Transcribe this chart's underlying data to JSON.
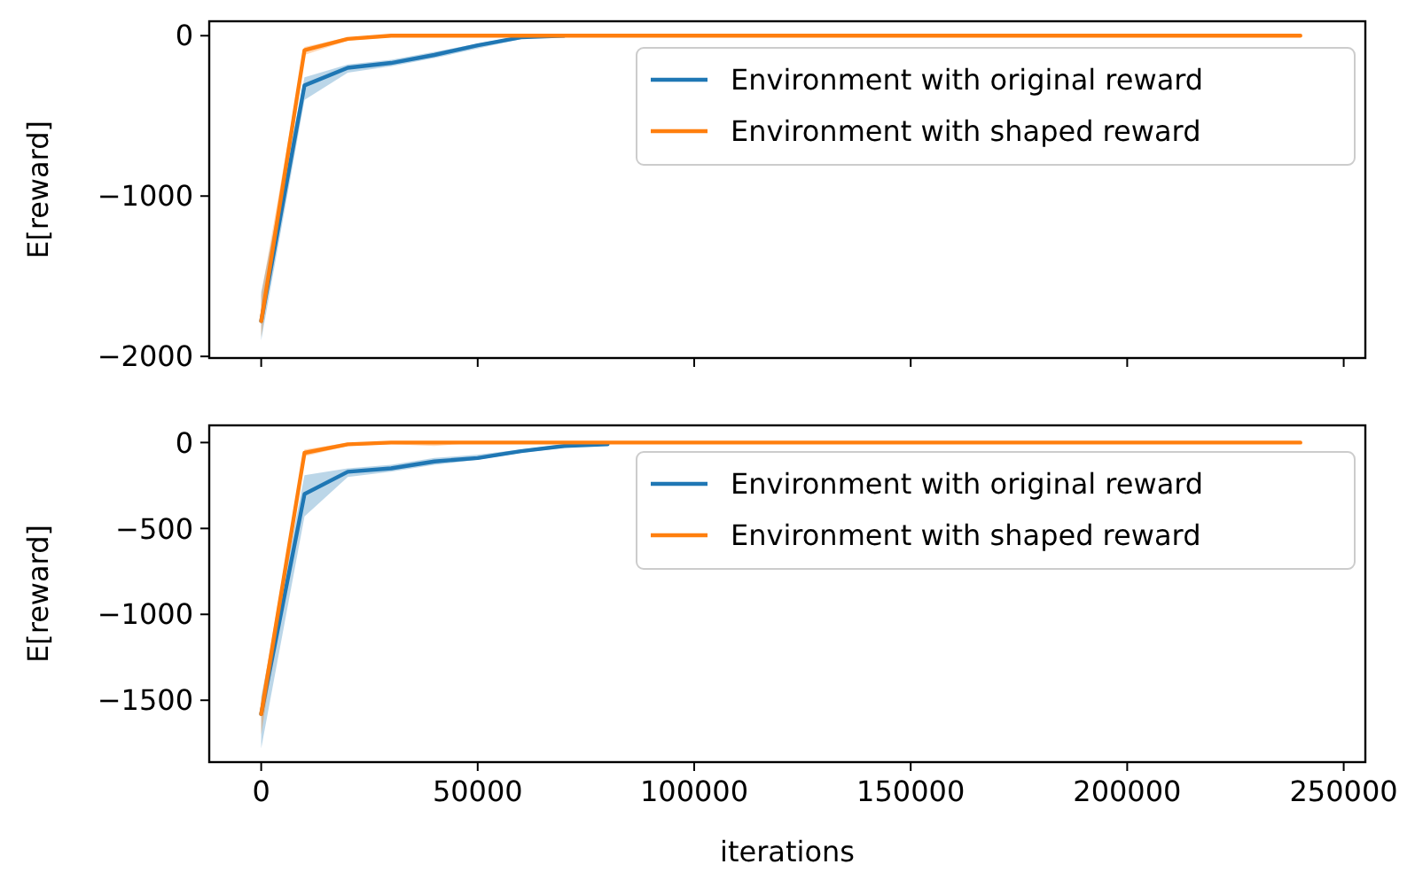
{
  "chart_data": [
    {
      "type": "line",
      "ylabel": "E[reward]",
      "x": [
        0,
        10000,
        20000,
        30000,
        40000,
        50000,
        60000,
        70000,
        80000,
        90000,
        100000,
        110000,
        120000,
        130000,
        140000,
        150000,
        160000,
        170000,
        180000,
        190000,
        200000,
        210000,
        220000,
        230000,
        240000
      ],
      "xlim": [
        -12000,
        255000
      ],
      "xticks": [
        {
          "value": 0,
          "label": null
        },
        {
          "value": 50000,
          "label": null
        },
        {
          "value": 100000,
          "label": null
        },
        {
          "value": 150000,
          "label": null
        },
        {
          "value": 200000,
          "label": null
        },
        {
          "value": 250000,
          "label": null
        }
      ],
      "ylim": [
        -2010,
        90
      ],
      "yticks": [
        {
          "value": 0,
          "label": "0"
        },
        {
          "value": -1000,
          "label": "−1000"
        },
        {
          "value": -2000,
          "label": "−2000"
        }
      ],
      "tick_labels": "y",
      "legend": "top right",
      "grid": false,
      "series": [
        {
          "name": "Environment with original reward",
          "color": "#1f77b4",
          "values": [
            -1780,
            -310,
            -200,
            -170,
            -120,
            -60,
            -10,
            0,
            null,
            null,
            null,
            null,
            null,
            null,
            null,
            null,
            null,
            null,
            null,
            null,
            null,
            null,
            null,
            null,
            null
          ],
          "lower": [
            -1900,
            -400,
            -230,
            -190,
            -140,
            -80,
            -20,
            0,
            null,
            null,
            null,
            null,
            null,
            null,
            null,
            null,
            null,
            null,
            null,
            null,
            null,
            null,
            null,
            null,
            null
          ],
          "upper": [
            -1600,
            -260,
            -180,
            -150,
            -100,
            -50,
            0,
            0,
            null,
            null,
            null,
            null,
            null,
            null,
            null,
            null,
            null,
            null,
            null,
            null,
            null,
            null,
            null,
            null,
            null
          ]
        },
        {
          "name": "Environment with shaped reward",
          "color": "#ff7f0e",
          "values": [
            -1780,
            -90,
            -20,
            0,
            0,
            0,
            0,
            0,
            0,
            0,
            0,
            0,
            0,
            0,
            0,
            0,
            0,
            0,
            0,
            0,
            0,
            0,
            0,
            0,
            0
          ],
          "lower": [
            -1880,
            -120,
            -30,
            -10,
            0,
            0,
            0,
            0,
            0,
            0,
            0,
            0,
            0,
            0,
            0,
            0,
            0,
            0,
            0,
            0,
            0,
            0,
            0,
            0,
            0
          ],
          "upper": [
            -1620,
            -70,
            -10,
            0,
            0,
            0,
            0,
            0,
            0,
            0,
            0,
            0,
            0,
            0,
            0,
            0,
            0,
            0,
            0,
            0,
            0,
            0,
            0,
            0,
            0
          ]
        }
      ]
    },
    {
      "type": "line",
      "xlabel": "iterations",
      "ylabel": "E[reward]",
      "x": [
        0,
        10000,
        20000,
        30000,
        40000,
        50000,
        60000,
        70000,
        80000,
        90000,
        100000,
        110000,
        120000,
        130000,
        140000,
        150000,
        160000,
        170000,
        180000,
        190000,
        200000,
        210000,
        220000,
        230000,
        240000
      ],
      "xlim": [
        -12000,
        255000
      ],
      "xticks": [
        0,
        50000,
        100000,
        150000,
        200000,
        250000
      ],
      "ylim": [
        -1860,
        100
      ],
      "yticks": [
        {
          "value": 0,
          "label": "0"
        },
        {
          "value": -500,
          "label": "−500"
        },
        {
          "value": -1000,
          "label": "−1000"
        },
        {
          "value": -1500,
          "label": "−1500"
        }
      ],
      "legend": "top right",
      "grid": false,
      "series": [
        {
          "name": "Environment with original reward",
          "color": "#1f77b4",
          "values": [
            -1580,
            -300,
            -170,
            -150,
            -110,
            -90,
            -50,
            -20,
            -10,
            null,
            null,
            null,
            null,
            null,
            null,
            null,
            null,
            null,
            null,
            null,
            null,
            null,
            null,
            null,
            null
          ],
          "lower": [
            -1780,
            -430,
            -200,
            -170,
            -130,
            -100,
            -60,
            -30,
            -10,
            null,
            null,
            null,
            null,
            null,
            null,
            null,
            null,
            null,
            null,
            null,
            null,
            null,
            null,
            null,
            null
          ],
          "upper": [
            -1480,
            -190,
            -150,
            -130,
            -90,
            -70,
            -40,
            -10,
            0,
            null,
            null,
            null,
            null,
            null,
            null,
            null,
            null,
            null,
            null,
            null,
            null,
            null,
            null,
            null,
            null
          ]
        },
        {
          "name": "Environment with shaped reward",
          "color": "#ff7f0e",
          "values": [
            -1580,
            -60,
            -10,
            0,
            0,
            0,
            0,
            0,
            0,
            0,
            0,
            0,
            0,
            0,
            0,
            0,
            0,
            0,
            0,
            0,
            0,
            0,
            0,
            0,
            0
          ],
          "lower": [
            -1700,
            -80,
            -20,
            -10,
            -20,
            0,
            0,
            0,
            0,
            0,
            0,
            0,
            0,
            0,
            0,
            0,
            0,
            0,
            0,
            0,
            0,
            0,
            0,
            0,
            0
          ],
          "upper": [
            -1500,
            -40,
            0,
            0,
            0,
            0,
            0,
            0,
            0,
            0,
            0,
            0,
            0,
            0,
            0,
            0,
            0,
            0,
            0,
            0,
            0,
            0,
            0,
            0,
            0
          ]
        }
      ]
    }
  ]
}
